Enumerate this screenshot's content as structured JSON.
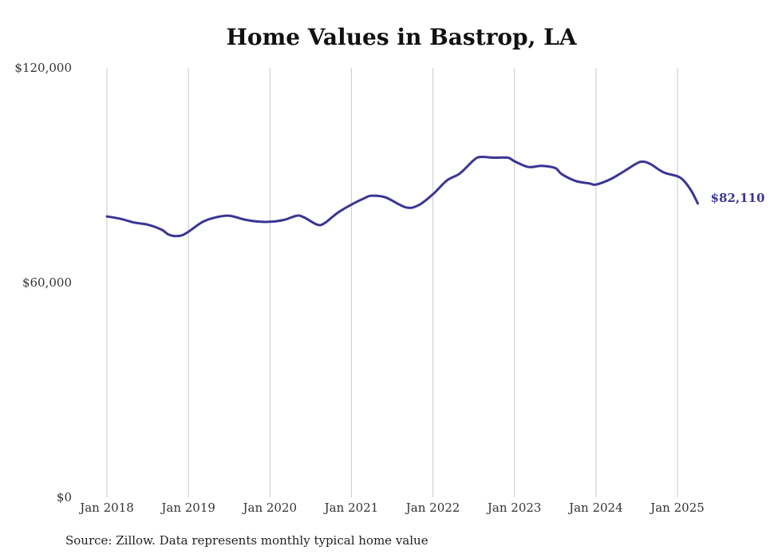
{
  "chart_data": {
    "type": "line",
    "title": "Home Values in Bastrop, LA",
    "xlabel": "",
    "ylabel": "",
    "ylim": [
      0,
      120000
    ],
    "y_ticks": [
      "$0",
      "$60,000",
      "$120,000"
    ],
    "y_tick_values": [
      0,
      60000,
      120000
    ],
    "x_ticks": [
      "Jan 2018",
      "Jan 2019",
      "Jan 2020",
      "Jan 2021",
      "Jan 2022",
      "Jan 2023",
      "Jan 2024",
      "Jan 2025"
    ],
    "x_tick_values": [
      2018,
      2019,
      2020,
      2021,
      2022,
      2023,
      2024,
      2025
    ],
    "grid": "vertical",
    "line_color": "#3a3594",
    "series": [
      {
        "last_label": "$82,110",
        "x": [
          2018.0,
          2018.17,
          2018.33,
          2018.5,
          2018.67,
          2018.75,
          2018.83,
          2018.92,
          2019.0,
          2019.17,
          2019.33,
          2019.5,
          2019.67,
          2019.83,
          2020.0,
          2020.17,
          2020.33,
          2020.42,
          2020.58,
          2020.67,
          2020.83,
          2021.0,
          2021.17,
          2021.25,
          2021.42,
          2021.67,
          2021.83,
          2022.0,
          2022.17,
          2022.33,
          2022.5,
          2022.58,
          2022.75,
          2022.92,
          2023.0,
          2023.17,
          2023.33,
          2023.5,
          2023.58,
          2023.75,
          2023.92,
          2024.0,
          2024.17,
          2024.33,
          2024.5,
          2024.58,
          2024.67,
          2024.83,
          2025.0,
          2025.08,
          2025.17,
          2025.25
        ],
        "values": [
          78500,
          77800,
          76800,
          76200,
          74800,
          73500,
          73000,
          73200,
          74200,
          76900,
          78200,
          78700,
          77700,
          77100,
          77000,
          77500,
          78700,
          78200,
          76200,
          76600,
          79500,
          81800,
          83700,
          84300,
          83800,
          81000,
          81700,
          84700,
          88500,
          90500,
          94200,
          95100,
          94900,
          94900,
          93900,
          92300,
          92600,
          92000,
          90300,
          88400,
          87700,
          87400,
          88800,
          90900,
          93300,
          93800,
          93100,
          90800,
          89700,
          88400,
          85600,
          82110
        ]
      }
    ]
  },
  "source": "Source: Zillow. Data represents monthly typical home value"
}
